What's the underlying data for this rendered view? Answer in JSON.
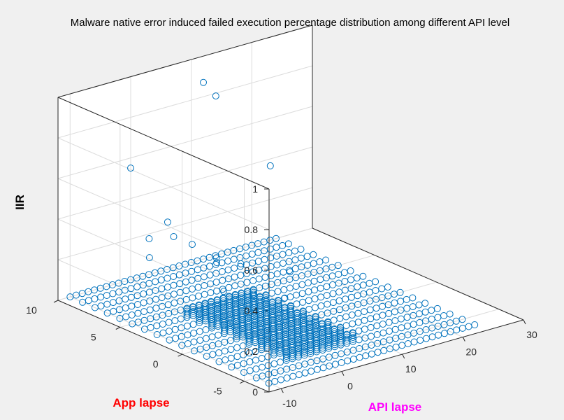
{
  "chart_data": {
    "type": "scatter3d",
    "title": "Malware native error induced failed execution percentage distribution among different API level",
    "xlabel": "API lapse",
    "ylabel": "App lapse",
    "zlabel": "IIR",
    "xlim": [
      -12,
      30
    ],
    "ylim": [
      -7,
      10
    ],
    "zlim": [
      0,
      1
    ],
    "xticks": [
      "-10",
      "0",
      "10",
      "20",
      "30"
    ],
    "yticks": [
      "-5",
      "0",
      "5",
      "10"
    ],
    "zticks": [
      "0",
      "0.2",
      "0.4",
      "0.6",
      "0.8",
      "1"
    ],
    "grid": true,
    "colors": {
      "marker": "#0072BD",
      "app_label": "#ff0000",
      "api_label": "#ff00ff",
      "axis": "#262626",
      "grid": "#dcdcdc",
      "plot_bg": "#ffffff",
      "figure_bg": "#f0f0f0"
    },
    "grid_points": {
      "x_range": [
        -10,
        24
      ],
      "y_range": [
        -6,
        10
      ],
      "step": 1,
      "dense_region": {
        "x_range": [
          -3,
          8
        ],
        "y_range": [
          -4,
          4
        ],
        "z_values": [
          0,
          0.01,
          0.02,
          0.03,
          0.04
        ]
      },
      "typical_z": 0
    },
    "outliers": [
      {
        "x": 21,
        "y": 9,
        "z": 0.41
      },
      {
        "x": 12,
        "y": 9,
        "z": 0.83
      },
      {
        "x": 12,
        "y": 10,
        "z": 0.87
      },
      {
        "x": 0,
        "y": 10,
        "z": 0.55
      },
      {
        "x": 2,
        "y": 8,
        "z": 0.32
      },
      {
        "x": 3,
        "y": 8,
        "z": 0.24
      },
      {
        "x": 4,
        "y": 7,
        "z": 0.22
      },
      {
        "x": 1,
        "y": 9,
        "z": 0.22
      },
      {
        "x": 6,
        "y": 6,
        "z": 0.14
      },
      {
        "x": -1,
        "y": 8,
        "z": 0.17
      },
      {
        "x": 8,
        "y": 7,
        "z": 0.12
      },
      {
        "x": 10,
        "y": 6,
        "z": 0.1
      },
      {
        "x": 14,
        "y": 4,
        "z": 0.08
      },
      {
        "x": 1,
        "y": 3,
        "z": 0.12
      },
      {
        "x": 4,
        "y": 2,
        "z": 0.1
      },
      {
        "x": 7,
        "y": 1,
        "z": 0.09
      }
    ]
  }
}
